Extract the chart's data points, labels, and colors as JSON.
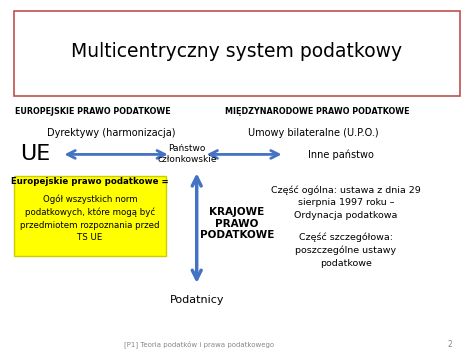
{
  "title": "Multicentryczny system podatkowy",
  "bg_color": "#ffffff",
  "title_border_color": "#c0504d",
  "left_header": "EUROPEJSKIE PRAWO PODATKOWE",
  "right_header": "MIĘDZYNARODOWE PRAWO PODATKOWE",
  "label_ue": "UE",
  "label_panstwo": "Państwo\nczłonkowskie",
  "label_inne": "Inne państwo",
  "label_dyrektywy": "Dyrektywy (harmonizacja)",
  "label_umowy": "Umowy bilateralne (U.P.O.)",
  "label_krajowe": "KRAJOWE\nPRAWO\nPODATKOWE",
  "label_podatnicy": "Podatnicy",
  "yellow_bold": "Europejskie prawo podatkowe =",
  "yellow_normal": "Ogół wszystkich norm\npodatkowych, które mogą być\nprzedmiotem rozpoznania przed\nTS UE",
  "right_text1": "Część ogólna: ustawa z dnia 29\nsierpnia 1997 roku –\nOrdynacja podatkowa",
  "right_text2": "Część szczegółowa:\nposzczególne ustawy\npodatkowe",
  "footer": "[P1] Teoria podatków i prawa podatkowego",
  "footer_page": "2",
  "arrow_color": "#4472c4"
}
